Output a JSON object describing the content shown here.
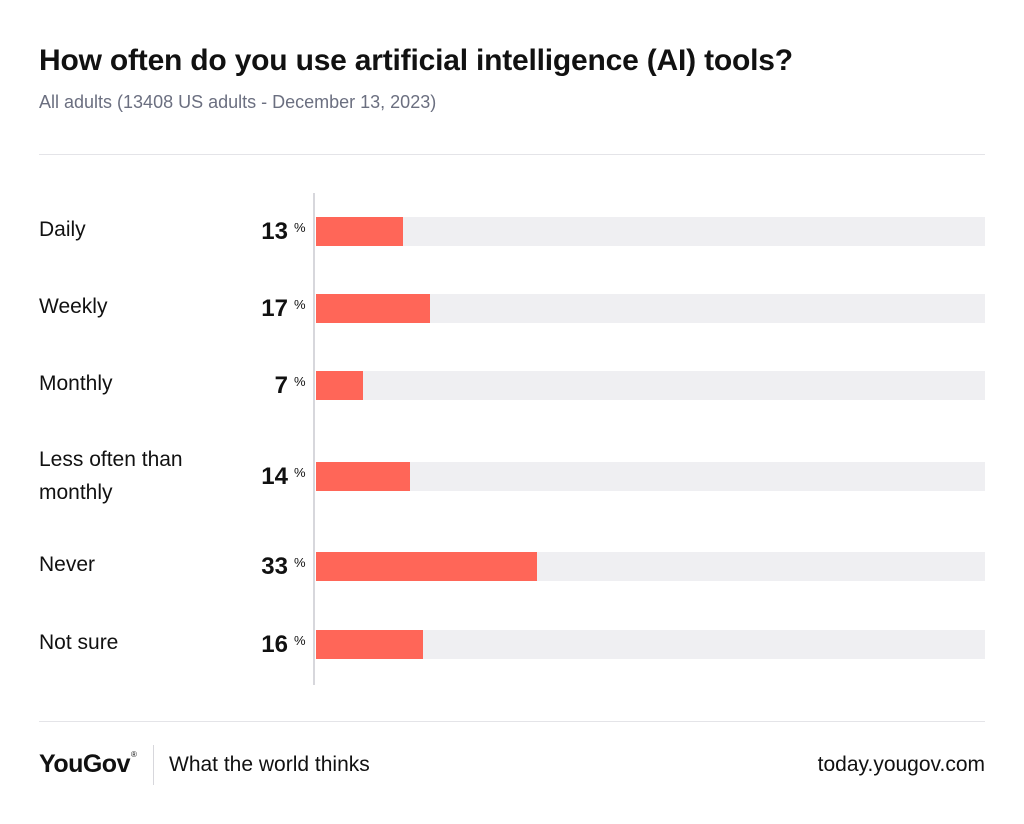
{
  "header": {
    "title": "How often do you use artificial intelligence (AI) tools?",
    "subtitle": "All adults (13408 US adults - December 13, 2023)"
  },
  "colors": {
    "bar": "#ff6658",
    "track": "#efeff2",
    "subtitle": "#6b6f80"
  },
  "chart_data": {
    "type": "bar",
    "orientation": "horizontal",
    "categories": [
      "Daily",
      "Weekly",
      "Monthly",
      "Less often than monthly",
      "Never",
      "Not sure"
    ],
    "values": [
      13,
      17,
      7,
      14,
      33,
      16
    ],
    "unit": "%",
    "xlim": [
      0,
      100
    ],
    "grid": false
  },
  "footer": {
    "brand": "YouGov",
    "brand_mark": "®",
    "tagline": "What the world thinks",
    "url": "today.yougov.com"
  }
}
